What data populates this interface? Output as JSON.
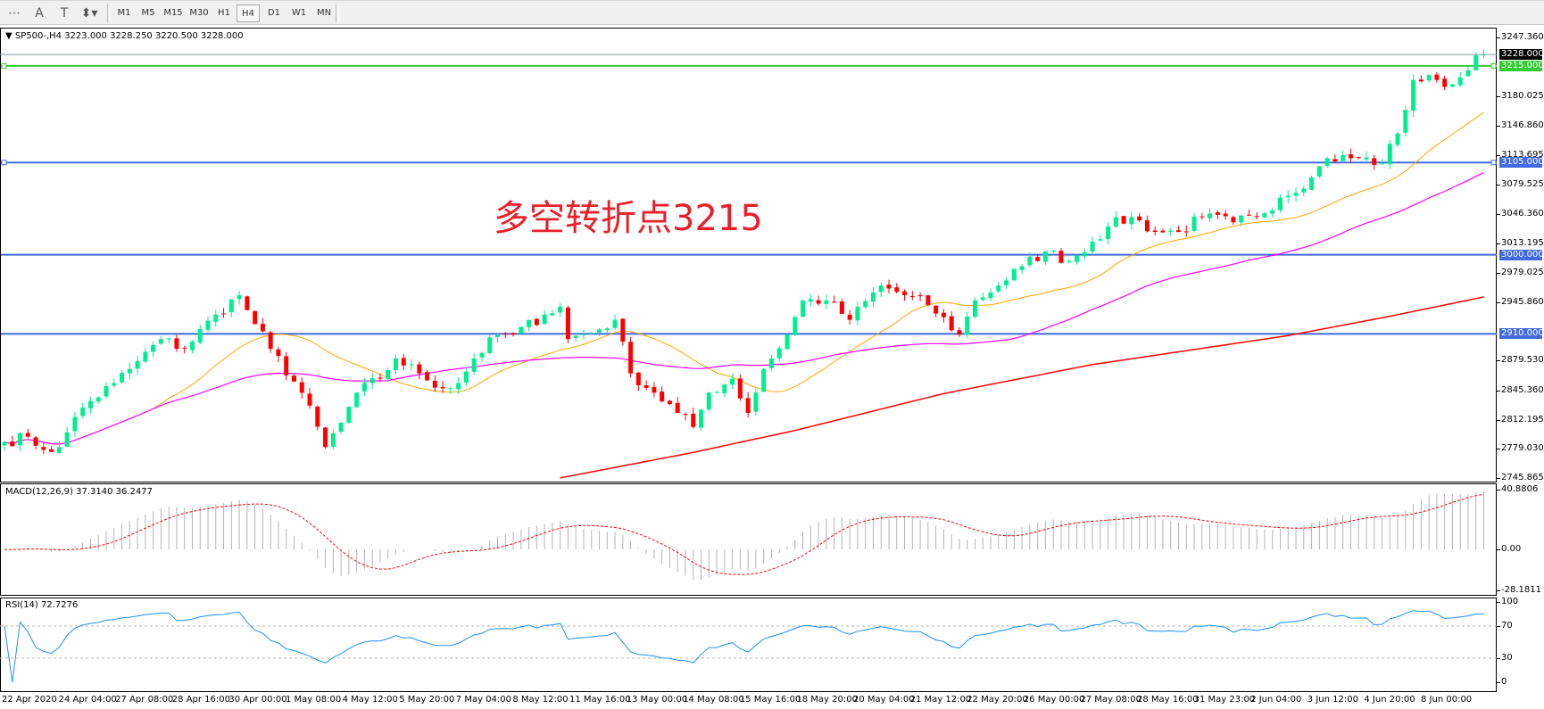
{
  "toolbar": {
    "tools": [
      {
        "name": "grid-properties-icon",
        "glyph": "⋯"
      },
      {
        "name": "text-icon",
        "glyph": "A"
      },
      {
        "name": "text-label-icon",
        "glyph": "T"
      },
      {
        "name": "arrows-icon",
        "glyph": "⬍▾"
      }
    ],
    "timeframes": [
      "M1",
      "M5",
      "M15",
      "M30",
      "H1",
      "H4",
      "D1",
      "W1",
      "MN"
    ],
    "active_timeframe": "H4"
  },
  "chart": {
    "symbol_info": "SP500-,H4  3223.000 3228.250 3220.500 3228.000",
    "annotation": "多空转折点3215",
    "price_axis": [
      "3247.360",
      "3180.025",
      "3146.860",
      "3113.695",
      "3079.525",
      "3046.360",
      "3013.195",
      "2979.025",
      "2945.860",
      "2879.530",
      "2845.360",
      "2812.195",
      "2779.030",
      "2745.865"
    ],
    "current_price": {
      "label": "3228.000",
      "color": "#000000"
    },
    "levels": [
      {
        "label": "3215.000",
        "color": "#33cc33"
      },
      {
        "label": "3105.000",
        "color": "#4169e1"
      },
      {
        "label": "3000.000",
        "color": "#4169e1"
      },
      {
        "label": "2910.000",
        "color": "#4169e1"
      }
    ],
    "colors": {
      "bull": "#00ee90",
      "bear": "#ff0000",
      "ma_fast": "#ffa500",
      "ma_mid": "#ff00ff",
      "ma_slow": "#ff0000"
    },
    "time_axis": [
      "22 Apr 2020",
      "24 Apr 04:00",
      "27 Apr 08:00",
      "28 Apr 16:00",
      "30 Apr 00:00",
      "1 May 08:00",
      "4 May 12:00",
      "5 May 20:00",
      "7 May 04:00",
      "8 May 12:00",
      "11 May 16:00",
      "13 May 00:00",
      "14 May 08:00",
      "15 May 16:00",
      "18 May 20:00",
      "20 May 04:00",
      "21 May 12:00",
      "22 May 20:00",
      "26 May 00:00",
      "27 May 08:00",
      "28 May 16:00",
      "31 May 23:00",
      "2 Jun 04:00",
      "3 Jun 12:00",
      "4 Jun 20:00",
      "8 Jun 00:00"
    ]
  },
  "macd": {
    "label": "MACD(12,26,9) 37.3140 36.2477",
    "axis": [
      "40.8806",
      "0.00",
      "-28.1811"
    ]
  },
  "rsi": {
    "label": "RSI(14) 72.7276",
    "axis": [
      "100",
      "70",
      "30",
      "0"
    ]
  },
  "chart_data": {
    "type": "candlestick",
    "ylim": [
      2745.865,
      3247.36
    ],
    "close_anchors": [
      [
        0,
        2787
      ],
      [
        3,
        2793
      ],
      [
        5,
        2778
      ],
      [
        7,
        2781
      ],
      [
        8,
        2798
      ],
      [
        10,
        2826
      ],
      [
        14,
        2854
      ],
      [
        16,
        2870
      ],
      [
        20,
        2904
      ],
      [
        23,
        2893
      ],
      [
        27,
        2932
      ],
      [
        30,
        2954
      ],
      [
        32,
        2921
      ],
      [
        34,
        2893
      ],
      [
        38,
        2843
      ],
      [
        41,
        2781
      ],
      [
        43,
        2809
      ],
      [
        45,
        2843
      ],
      [
        48,
        2859
      ],
      [
        50,
        2882
      ],
      [
        53,
        2865
      ],
      [
        56,
        2848
      ],
      [
        58,
        2854
      ],
      [
        60,
        2882
      ],
      [
        63,
        2909
      ],
      [
        65,
        2909
      ],
      [
        69,
        2932
      ],
      [
        71,
        2941
      ],
      [
        72,
        2904
      ],
      [
        76,
        2915
      ],
      [
        78,
        2926
      ],
      [
        80,
        2865
      ],
      [
        83,
        2843
      ],
      [
        86,
        2820
      ],
      [
        88,
        2804
      ],
      [
        90,
        2843
      ],
      [
        93,
        2859
      ],
      [
        95,
        2820
      ],
      [
        97,
        2870
      ],
      [
        100,
        2909
      ],
      [
        102,
        2948
      ],
      [
        105,
        2948
      ],
      [
        108,
        2926
      ],
      [
        112,
        2965
      ],
      [
        115,
        2954
      ],
      [
        118,
        2943
      ],
      [
        122,
        2909
      ],
      [
        124,
        2948
      ],
      [
        127,
        2965
      ],
      [
        130,
        2987
      ],
      [
        133,
        3004
      ],
      [
        136,
        2993
      ],
      [
        139,
        3015
      ],
      [
        141,
        3032
      ],
      [
        144,
        3043
      ],
      [
        147,
        3026
      ],
      [
        150,
        3026
      ],
      [
        153,
        3043
      ],
      [
        157,
        3037
      ],
      [
        160,
        3043
      ],
      [
        163,
        3065
      ],
      [
        167,
        3088
      ],
      [
        169,
        3110
      ],
      [
        173,
        3110
      ],
      [
        176,
        3104
      ],
      [
        178,
        3138
      ],
      [
        180,
        3199
      ],
      [
        183,
        3199
      ],
      [
        185,
        3194
      ],
      [
        187,
        3210
      ],
      [
        188,
        3227
      ],
      [
        189,
        3228
      ]
    ],
    "slow_ma_anchors": [
      [
        71,
        2746
      ],
      [
        88,
        2775
      ],
      [
        101,
        2800
      ],
      [
        120,
        2842
      ],
      [
        139,
        2875
      ],
      [
        164,
        2908
      ],
      [
        177,
        2930
      ],
      [
        189,
        2952
      ]
    ],
    "macd_range": [
      -28.1811,
      40.8806
    ],
    "rsi_range": [
      0,
      100
    ]
  }
}
